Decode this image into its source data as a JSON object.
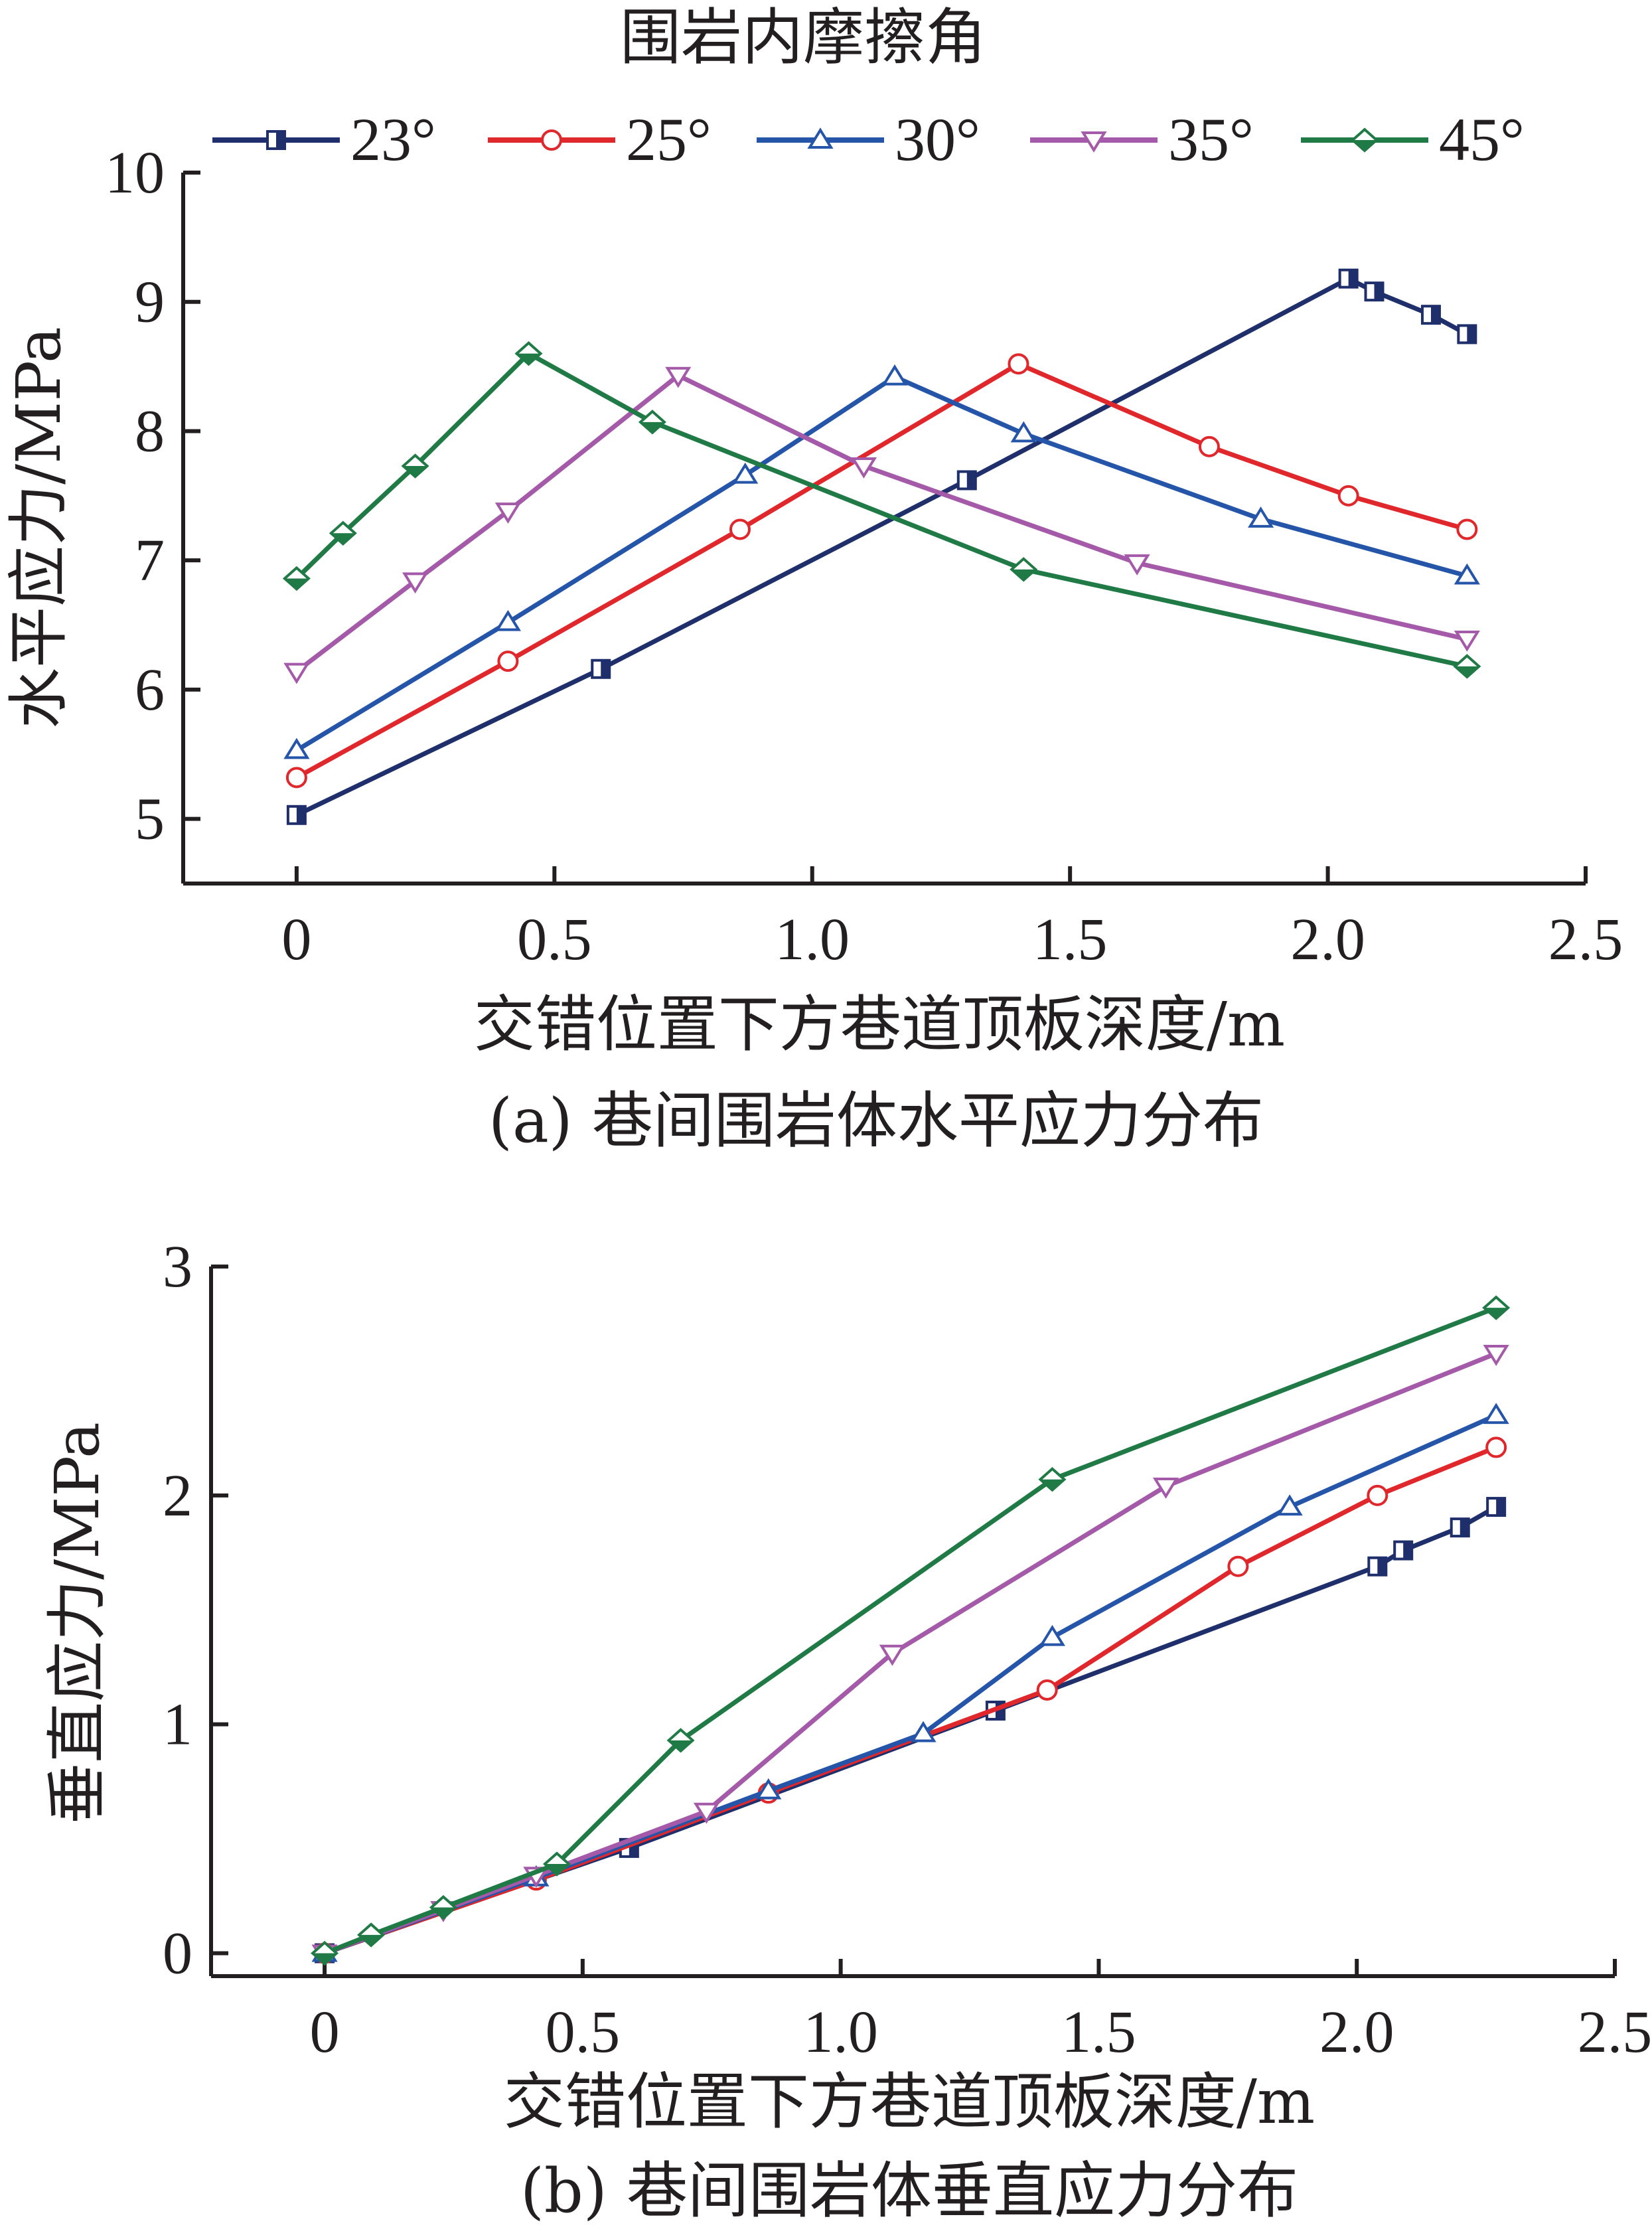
{
  "legend": {
    "title": "围岩内摩擦角",
    "entries": [
      "23°",
      "25°",
      "30°",
      "35°",
      "45°"
    ]
  },
  "colors": {
    "23°": "#1f2f6b",
    "25°": "#e0282c",
    "30°": "#2555a8",
    "35°": "#a45aa8",
    "45°": "#1f7a45",
    "axis": "#231f20"
  },
  "markers": {
    "23°": "square-half",
    "25°": "circle-open",
    "30°": "triangle-up-open",
    "35°": "triangle-down-open",
    "45°": "diamond-half"
  },
  "chart_data": [
    {
      "type": "line",
      "caption": "(a) 巷间围岩体水平应力分布",
      "xlabel": "交错位置下方巷道顶板深度/m",
      "ylabel": "水平应力/MPa",
      "xlim": [
        -0.22,
        2.5
      ],
      "ylim": [
        4.5,
        10
      ],
      "xticks": [
        "0",
        "0.5",
        "1.0",
        "1.5",
        "2.0",
        "2.5"
      ],
      "xtick_values": [
        0,
        0.5,
        1.0,
        1.5,
        2.0,
        2.5
      ],
      "yticks": [
        "5",
        "6",
        "7",
        "8",
        "9",
        "10"
      ],
      "ytick_values": [
        5,
        6,
        7,
        8,
        9,
        10
      ],
      "series": [
        {
          "name": "23°",
          "x": [
            0,
            0.59,
            1.3,
            2.04,
            2.09,
            2.2,
            2.27
          ],
          "y": [
            5.03,
            6.16,
            7.62,
            9.18,
            9.08,
            8.9,
            8.75
          ]
        },
        {
          "name": "25°",
          "x": [
            0,
            0.41,
            0.86,
            1.4,
            1.77,
            2.04,
            2.27
          ],
          "y": [
            5.32,
            6.22,
            7.24,
            8.52,
            7.88,
            7.5,
            7.24
          ]
        },
        {
          "name": "30°",
          "x": [
            0,
            0.41,
            0.87,
            1.16,
            1.41,
            1.87,
            2.27
          ],
          "y": [
            5.53,
            6.52,
            7.66,
            8.42,
            7.98,
            7.32,
            6.88
          ]
        },
        {
          "name": "35°",
          "x": [
            0,
            0.23,
            0.41,
            0.74,
            1.1,
            1.63,
            2.27
          ],
          "y": [
            6.14,
            6.84,
            7.38,
            8.43,
            7.73,
            6.98,
            6.39
          ]
        },
        {
          "name": "45°",
          "x": [
            0,
            0.09,
            0.23,
            0.45,
            0.69,
            1.41,
            2.27
          ],
          "y": [
            6.86,
            7.21,
            7.73,
            8.6,
            8.07,
            6.93,
            6.18
          ]
        }
      ]
    },
    {
      "type": "line",
      "caption": "(b) 巷间围岩体垂直应力分布",
      "xlabel": "交错位置下方巷道顶板深度/m",
      "ylabel": "垂直应力/MPa",
      "xlim": [
        -0.22,
        2.5
      ],
      "ylim": [
        -0.1,
        3
      ],
      "xticks": [
        "0",
        "0.5",
        "1.0",
        "1.5",
        "2.0",
        "2.5"
      ],
      "xtick_values": [
        0,
        0.5,
        1.0,
        1.5,
        2.0,
        2.5
      ],
      "yticks": [
        "0",
        "1",
        "2",
        "3"
      ],
      "ytick_values": [
        0,
        1,
        2,
        3
      ],
      "series": [
        {
          "name": "23°",
          "x": [
            0,
            0.59,
            1.3,
            2.04,
            2.09,
            2.2,
            2.27
          ],
          "y": [
            0,
            0.46,
            1.06,
            1.69,
            1.76,
            1.86,
            1.95
          ]
        },
        {
          "name": "25°",
          "x": [
            0,
            0.41,
            0.86,
            1.4,
            1.77,
            2.04,
            2.27
          ],
          "y": [
            0,
            0.32,
            0.7,
            1.15,
            1.69,
            2.0,
            2.21
          ]
        },
        {
          "name": "30°",
          "x": [
            0,
            0.41,
            0.86,
            1.16,
            1.41,
            1.87,
            2.27
          ],
          "y": [
            0,
            0.33,
            0.71,
            0.96,
            1.38,
            1.95,
            2.35
          ]
        },
        {
          "name": "35°",
          "x": [
            0,
            0.23,
            0.41,
            0.74,
            1.1,
            1.63,
            2.27
          ],
          "y": [
            0,
            0.19,
            0.34,
            0.62,
            1.31,
            2.04,
            2.62
          ]
        },
        {
          "name": "45°",
          "x": [
            0,
            0.09,
            0.23,
            0.45,
            0.69,
            1.41,
            2.27
          ],
          "y": [
            0,
            0.08,
            0.2,
            0.39,
            0.93,
            2.07,
            2.82
          ]
        }
      ]
    }
  ]
}
